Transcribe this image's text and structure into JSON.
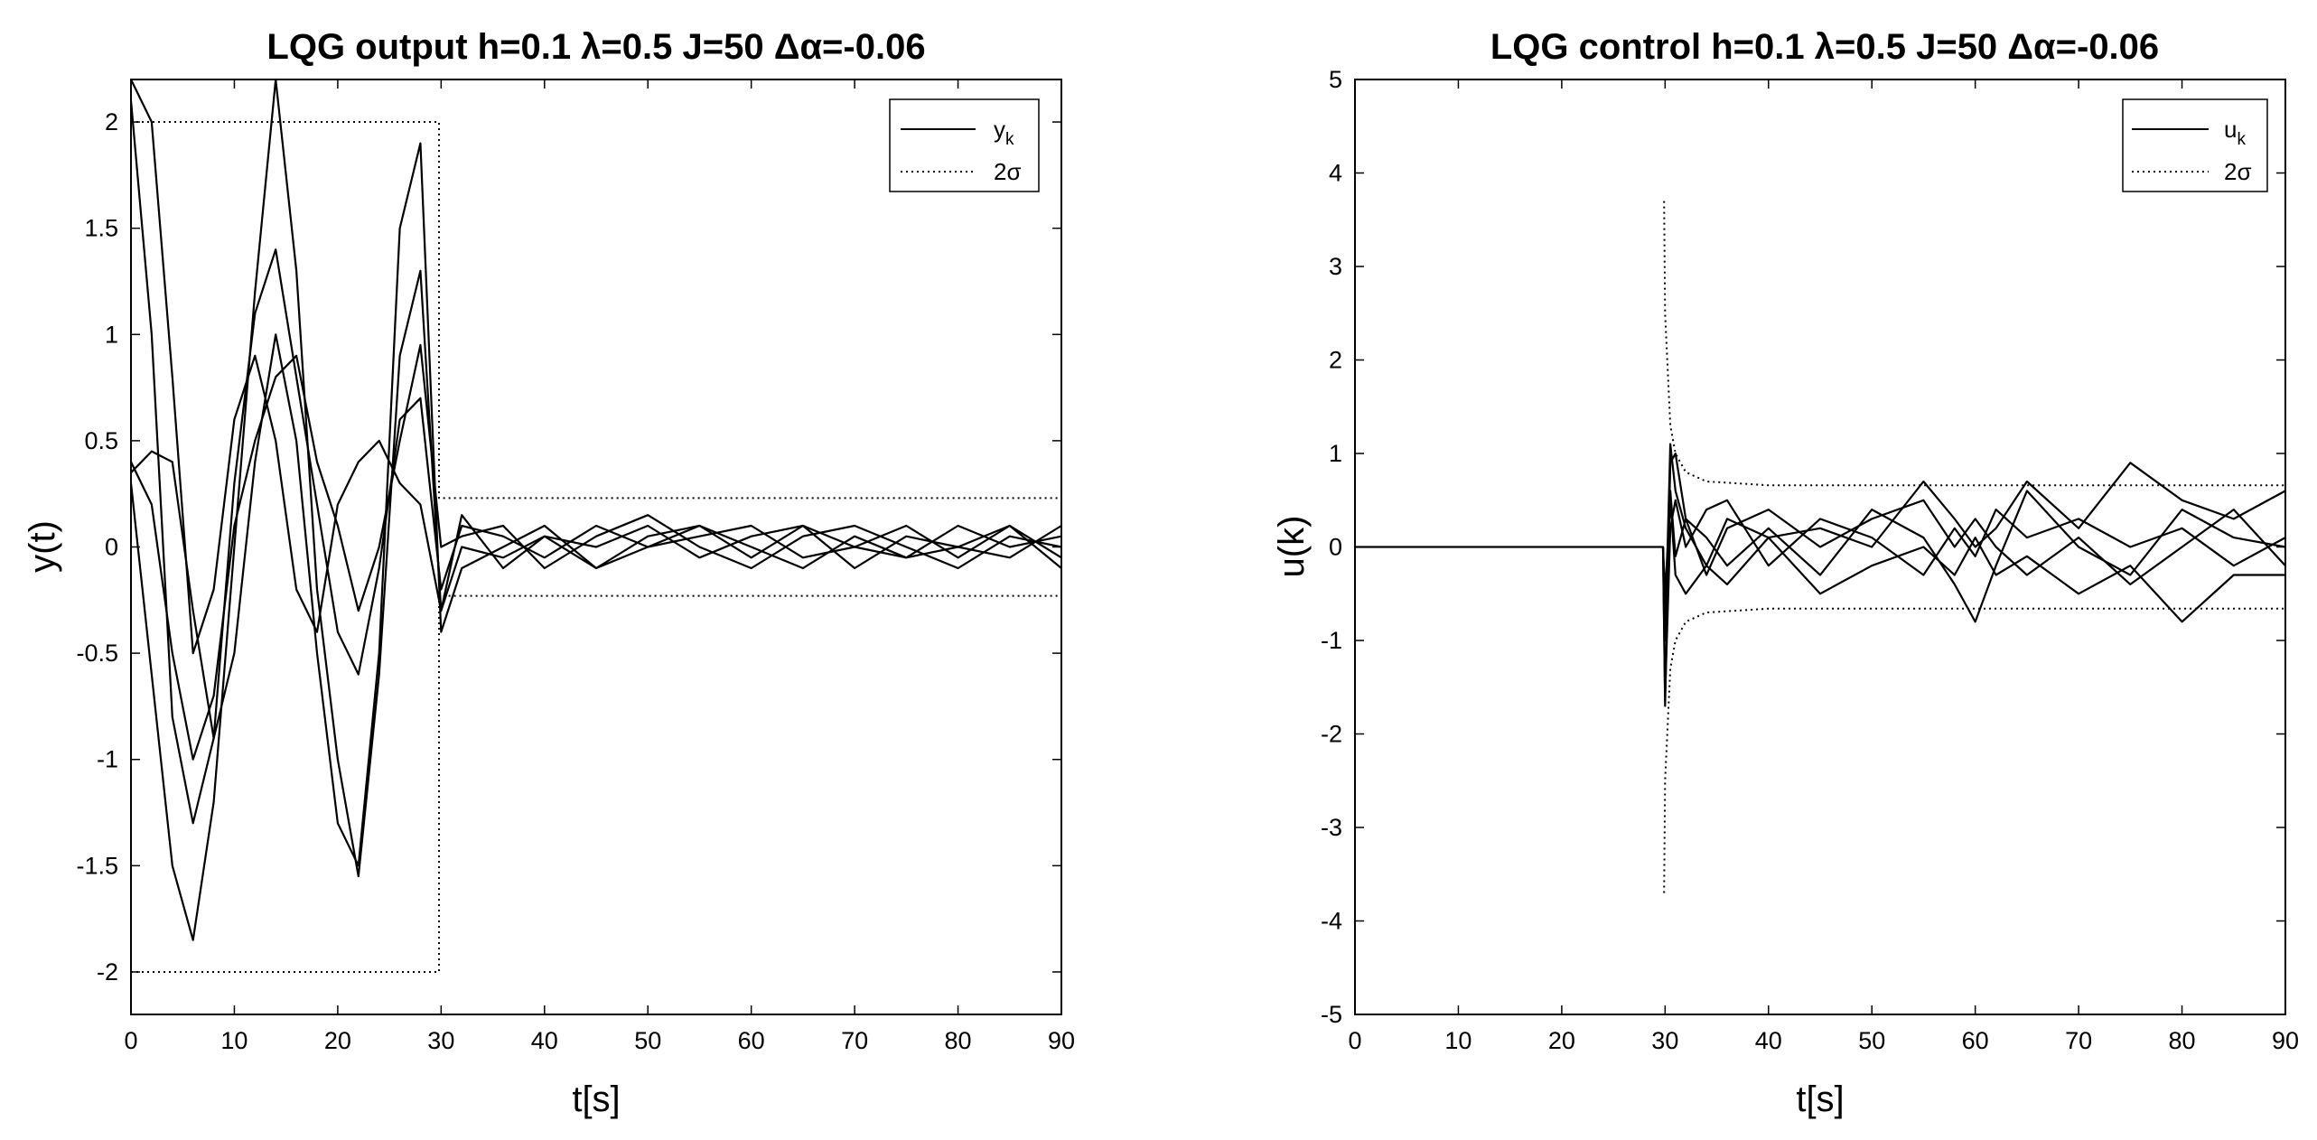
{
  "chart_data": [
    {
      "type": "line",
      "title": "LQG   output h=0.1   λ=0.5   J=50   Δα=-0.06",
      "xlabel": "t[s]",
      "ylabel": "y(t)",
      "xlim": [
        0,
        90
      ],
      "ylim": [
        -2.2,
        2.2
      ],
      "xticks": [
        0,
        10,
        20,
        30,
        40,
        50,
        60,
        70,
        80,
        90
      ],
      "yticks": [
        -2,
        -1.5,
        -1,
        -0.5,
        0,
        0.5,
        1,
        1.5,
        2
      ],
      "grid": false,
      "legend": {
        "placement": "top-right",
        "entries": [
          {
            "label": "y",
            "subscript": "k",
            "style": "solid"
          },
          {
            "label": "2σ",
            "subscript": "",
            "style": "dotted"
          }
        ]
      },
      "series": [
        {
          "style": "solid",
          "x": [
            0,
            2,
            4,
            6,
            8,
            10,
            12,
            14,
            16,
            18,
            20,
            22,
            24,
            26,
            28,
            30,
            32,
            36,
            40,
            45,
            50,
            55,
            60,
            65,
            70,
            75,
            80,
            85,
            90
          ],
          "y": [
            2.1,
            1.0,
            -0.8,
            -1.3,
            -0.9,
            0.3,
            1.1,
            1.4,
            0.8,
            0.2,
            -0.4,
            -0.6,
            -0.1,
            0.6,
            0.7,
            -0.2,
            0.1,
            0.05,
            -0.05,
            0.1,
            0.0,
            0.1,
            -0.05,
            0.1,
            0.0,
            -0.05,
            0.1,
            0.0,
            0.05
          ]
        },
        {
          "style": "solid",
          "x": [
            0,
            2,
            4,
            6,
            8,
            10,
            12,
            14,
            16,
            18,
            20,
            22,
            24,
            26,
            28,
            30,
            32,
            36,
            40,
            45,
            50,
            55,
            60,
            65,
            70,
            75,
            80,
            85,
            90
          ],
          "y": [
            0.3,
            -0.6,
            -1.5,
            -1.85,
            -1.2,
            0.0,
            1.2,
            2.2,
            1.3,
            -0.2,
            -1.0,
            -1.55,
            -0.6,
            0.9,
            1.3,
            -0.3,
            0.15,
            -0.1,
            0.05,
            0.0,
            0.1,
            -0.05,
            0.05,
            0.1,
            -0.1,
            0.05,
            0.0,
            -0.05,
            0.1
          ]
        },
        {
          "style": "solid",
          "x": [
            0,
            2,
            4,
            6,
            8,
            10,
            12,
            14,
            16,
            18,
            20,
            22,
            24,
            26,
            28,
            30,
            32,
            36,
            40,
            45,
            50,
            55,
            60,
            65,
            70,
            75,
            80,
            85,
            90
          ],
          "y": [
            0.4,
            0.2,
            -0.5,
            -1.0,
            -0.7,
            0.1,
            0.5,
            0.8,
            0.9,
            0.4,
            0.1,
            -0.3,
            0.0,
            0.5,
            0.95,
            0.0,
            0.05,
            0.1,
            -0.1,
            0.05,
            0.15,
            0.0,
            -0.1,
            0.05,
            0.1,
            0.0,
            -0.1,
            0.05,
            0.0
          ]
        },
        {
          "style": "solid",
          "x": [
            0,
            2,
            4,
            6,
            8,
            10,
            12,
            14,
            16,
            18,
            20,
            22,
            24,
            26,
            28,
            30,
            32,
            36,
            40,
            45,
            50,
            55,
            60,
            65,
            70,
            75,
            80,
            85,
            90
          ],
          "y": [
            0.35,
            0.45,
            0.4,
            -0.3,
            -0.9,
            -0.5,
            0.4,
            1.0,
            0.5,
            -0.5,
            -1.3,
            -1.5,
            -0.5,
            1.5,
            1.9,
            -0.4,
            -0.1,
            0.0,
            0.1,
            -0.1,
            0.0,
            0.05,
            0.1,
            -0.05,
            0.0,
            0.1,
            -0.05,
            0.1,
            -0.05
          ]
        },
        {
          "style": "solid",
          "x": [
            0,
            2,
            4,
            6,
            8,
            10,
            12,
            14,
            16,
            18,
            20,
            22,
            24,
            26,
            28,
            30,
            32,
            36,
            40,
            45,
            50,
            55,
            60,
            65,
            70,
            75,
            80,
            85,
            90
          ],
          "y": [
            2.2,
            2.0,
            0.8,
            -0.5,
            -0.2,
            0.6,
            0.9,
            0.5,
            -0.2,
            -0.4,
            0.2,
            0.4,
            0.5,
            0.3,
            0.2,
            -0.3,
            0.0,
            -0.05,
            0.05,
            -0.1,
            0.05,
            0.1,
            0.0,
            -0.1,
            0.05,
            -0.05,
            0.0,
            0.1,
            -0.1
          ]
        },
        {
          "style": "dotted",
          "name": "2σ",
          "x": [
            0,
            29.8,
            29.8,
            90
          ],
          "y": [
            2.0,
            2.0,
            0.23,
            0.23
          ]
        },
        {
          "style": "dotted",
          "name": "2σ",
          "x": [
            0,
            29.8,
            29.8,
            90
          ],
          "y": [
            -2.0,
            -2.0,
            -0.23,
            -0.23
          ]
        }
      ]
    },
    {
      "type": "line",
      "title": "LQG   control h=0.1   λ=0.5   J=50   Δα=-0.06",
      "xlabel": "t[s]",
      "ylabel": "u(k)",
      "xlim": [
        0,
        90
      ],
      "ylim": [
        -5,
        5
      ],
      "xticks": [
        0,
        10,
        20,
        30,
        40,
        50,
        60,
        70,
        80,
        90
      ],
      "yticks": [
        -5,
        -4,
        -3,
        -2,
        -1,
        0,
        1,
        2,
        3,
        4,
        5
      ],
      "grid": false,
      "legend": {
        "placement": "top-right",
        "entries": [
          {
            "label": "u",
            "subscript": "k",
            "style": "solid"
          },
          {
            "label": "2σ",
            "subscript": "",
            "style": "dotted"
          }
        ]
      },
      "series": [
        {
          "style": "solid",
          "x": [
            0,
            29.8,
            30,
            30.5,
            31,
            32,
            34,
            36,
            40,
            45,
            50,
            55,
            58,
            60,
            62,
            65,
            70,
            75,
            80,
            85,
            90
          ],
          "y": [
            0,
            0,
            -1.7,
            0.9,
            1.0,
            0.3,
            0.1,
            -0.2,
            0.2,
            -0.3,
            0.4,
            0.1,
            -0.4,
            -0.8,
            -0.2,
            0.6,
            0.0,
            -0.3,
            0.4,
            0.1,
            0.0
          ]
        },
        {
          "style": "solid",
          "x": [
            29.8,
            30,
            30.5,
            31,
            32,
            34,
            36,
            40,
            45,
            50,
            55,
            58,
            60,
            62,
            65,
            70,
            75,
            80,
            85,
            90
          ],
          "y": [
            0,
            -1.0,
            1.1,
            0.6,
            0.2,
            -0.2,
            0.3,
            0.1,
            0.2,
            0.0,
            0.7,
            0.3,
            0.0,
            0.2,
            0.7,
            0.2,
            0.9,
            0.5,
            0.3,
            0.6
          ]
        },
        {
          "style": "solid",
          "x": [
            29.8,
            30,
            30.5,
            31,
            32,
            34,
            36,
            40,
            45,
            50,
            55,
            58,
            60,
            62,
            65,
            70,
            75,
            80,
            85,
            90
          ],
          "y": [
            0,
            -0.5,
            0.5,
            -0.3,
            -0.5,
            -0.2,
            -0.4,
            0.1,
            -0.5,
            -0.2,
            0.0,
            -0.3,
            0.1,
            -0.3,
            -0.1,
            -0.5,
            -0.2,
            -0.8,
            -0.3,
            -0.3
          ]
        },
        {
          "style": "solid",
          "x": [
            29.8,
            30,
            30.5,
            31,
            32,
            34,
            36,
            40,
            45,
            50,
            55,
            58,
            60,
            62,
            65,
            70,
            75,
            80,
            85,
            90
          ],
          "y": [
            0,
            -1.6,
            0.2,
            0.5,
            0.0,
            0.4,
            0.5,
            -0.2,
            0.3,
            0.1,
            -0.3,
            0.2,
            -0.1,
            0.4,
            0.1,
            0.3,
            0.0,
            0.2,
            -0.2,
            0.1
          ]
        },
        {
          "style": "solid",
          "x": [
            29.8,
            30,
            30.5,
            31,
            32,
            34,
            36,
            40,
            45,
            50,
            55,
            58,
            60,
            62,
            65,
            70,
            75,
            80,
            85,
            90
          ],
          "y": [
            0,
            -0.8,
            0.6,
            -0.1,
            0.3,
            -0.3,
            0.2,
            0.4,
            0.0,
            0.3,
            0.5,
            0.0,
            0.3,
            0.0,
            -0.3,
            0.1,
            -0.4,
            0.0,
            0.4,
            -0.2
          ]
        },
        {
          "style": "dotted",
          "name": "2σ",
          "x": [
            29.9,
            30,
            30.5,
            31,
            32,
            34,
            40,
            90
          ],
          "y": [
            3.7,
            2.5,
            1.3,
            1.0,
            0.8,
            0.7,
            0.66,
            0.66
          ]
        },
        {
          "style": "dotted",
          "name": "2σ",
          "x": [
            29.9,
            30,
            30.5,
            31,
            32,
            34,
            40,
            90
          ],
          "y": [
            -3.7,
            -2.5,
            -1.3,
            -1.0,
            -0.8,
            -0.7,
            -0.66,
            -0.66
          ]
        }
      ]
    }
  ]
}
